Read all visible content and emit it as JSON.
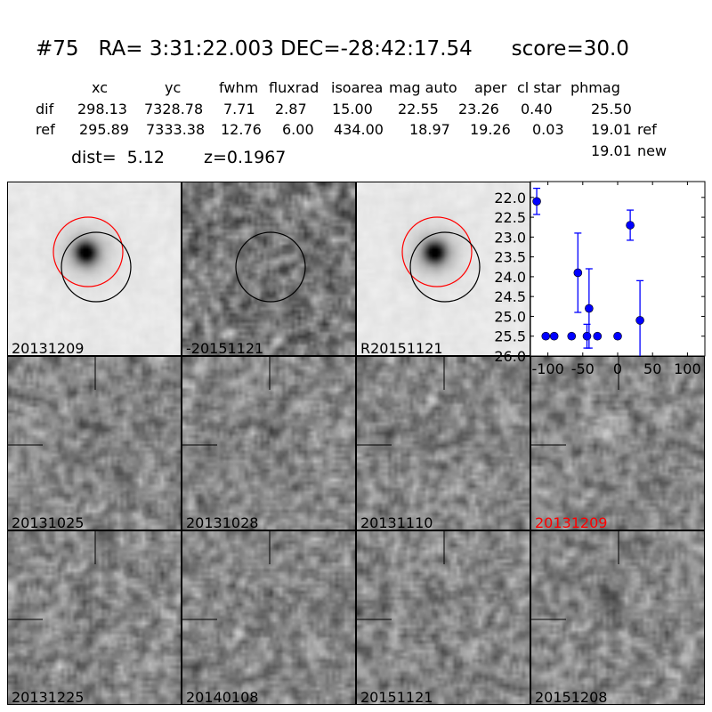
{
  "header": {
    "title": "#75   RA= 3:31:22.003 DEC=-28:42:17.54      score=30.0",
    "columns": [
      "xc",
      "yc",
      "fwhm",
      "fluxrad",
      "isoarea",
      "mag auto",
      "aper",
      "cl star",
      "phmag"
    ],
    "rows": [
      {
        "label": "dif",
        "values": [
          "298.13",
          "7328.78",
          "7.71",
          "2.87",
          "15.00",
          "22.55",
          "23.26",
          "0.40",
          "25.50"
        ],
        "note": ""
      },
      {
        "label": "ref",
        "values": [
          "295.89",
          "7333.38",
          "12.76",
          "6.00",
          "434.00",
          "18.97",
          "19.26",
          "0.03",
          "19.01"
        ],
        "note": "ref"
      }
    ],
    "extra_phmag": {
      "value": "19.01",
      "note": "new"
    },
    "dist": "dist=  5.12",
    "z": "z=0.1967"
  },
  "stamps": [
    {
      "label": "20131209",
      "kind": "ref",
      "label_color": "#000000"
    },
    {
      "label": "-20151121",
      "kind": "diff",
      "label_color": "#000000"
    },
    {
      "label": "R20151121",
      "kind": "ref",
      "label_color": "#000000"
    },
    {
      "label": "20131025",
      "kind": "cut",
      "label_color": "#000000"
    },
    {
      "label": "20131028",
      "kind": "cut",
      "label_color": "#000000"
    },
    {
      "label": "20131110",
      "kind": "cut",
      "label_color": "#000000"
    },
    {
      "label": "20131209",
      "kind": "cut",
      "label_color": "#ff0000"
    },
    {
      "label": "20131225",
      "kind": "cut",
      "label_color": "#000000"
    },
    {
      "label": "20140108",
      "kind": "cut",
      "label_color": "#000000"
    },
    {
      "label": "20151121",
      "kind": "cut",
      "label_color": "#000000"
    },
    {
      "label": "20151208",
      "kind": "cut",
      "label_color": "#000000"
    }
  ],
  "circle_colors": {
    "red": "#ff0000",
    "black": "#000000"
  },
  "chart_data": {
    "type": "scatter",
    "title": "",
    "xlabel": "",
    "ylabel": "",
    "xlim": [
      -125,
      125
    ],
    "ylim": [
      26.0,
      21.6
    ],
    "y_inverted": true,
    "xticks": [
      "-100",
      "-50",
      "0",
      "50",
      "100"
    ],
    "xtick_values": [
      -100,
      -50,
      0,
      50,
      100
    ],
    "yticks": [
      "22.0",
      "22.5",
      "23.0",
      "23.5",
      "24.0",
      "24.5",
      "25.0",
      "25.5",
      "26.0"
    ],
    "ytick_values": [
      22.0,
      22.5,
      23.0,
      23.5,
      24.0,
      24.5,
      25.0,
      25.5,
      26.0
    ],
    "color": "#0000ff",
    "grid": false,
    "points": [
      {
        "x": -116,
        "y": 22.1,
        "err": 0.33
      },
      {
        "x": -103,
        "y": 25.5,
        "err": 0.05
      },
      {
        "x": -91,
        "y": 25.5,
        "err": 0.05
      },
      {
        "x": -66,
        "y": 25.5,
        "err": 0.05
      },
      {
        "x": -57,
        "y": 23.9,
        "err": 1.0
      },
      {
        "x": -44,
        "y": 25.5,
        "err": 0.3
      },
      {
        "x": -41,
        "y": 24.8,
        "err": 1.0
      },
      {
        "x": -29,
        "y": 25.5,
        "err": 0.05
      },
      {
        "x": 0,
        "y": 25.5,
        "err": 0.05
      },
      {
        "x": 18,
        "y": 22.7,
        "err": 0.38
      },
      {
        "x": 32,
        "y": 25.1,
        "err": 1.0
      }
    ]
  }
}
